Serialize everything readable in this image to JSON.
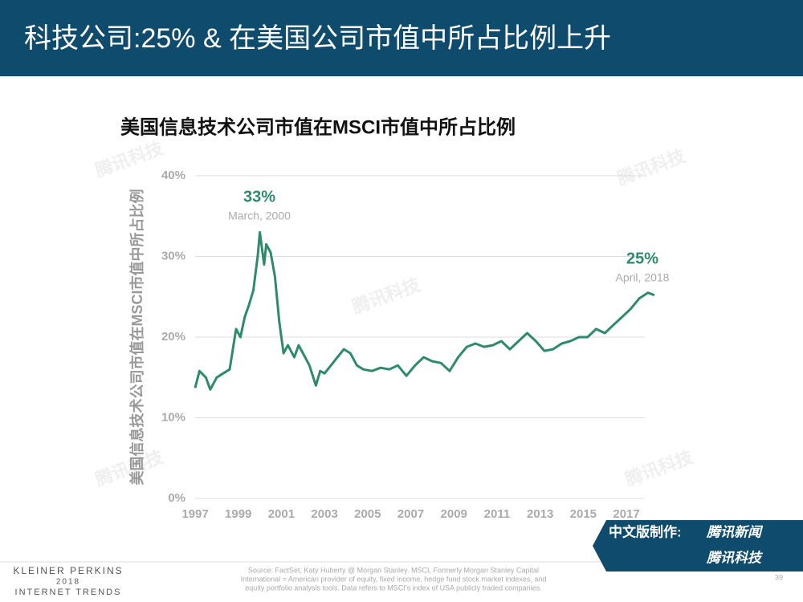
{
  "header": {
    "title": "科技公司:25% & 在美国公司市值中所占比例上升"
  },
  "chart_data": {
    "type": "line",
    "title": "美国信息技术公司市值在MSCI市值中所占比例",
    "y_label": "美国信息技术公司市值在MSCI市值中所占比例",
    "color": "#2e8b6a",
    "x": [
      1997.0,
      1997.2,
      1997.5,
      1997.7,
      1998.0,
      1998.3,
      1998.6,
      1998.9,
      1999.1,
      1999.3,
      1999.5,
      1999.7,
      1999.9,
      2000.0,
      2000.2,
      2000.3,
      2000.5,
      2000.7,
      2000.9,
      2001.1,
      2001.3,
      2001.6,
      2001.8,
      2002.0,
      2002.3,
      2002.6,
      2002.8,
      2003.0,
      2003.3,
      2003.6,
      2003.9,
      2004.2,
      2004.5,
      2004.8,
      2005.2,
      2005.6,
      2006.0,
      2006.4,
      2006.8,
      2007.2,
      2007.6,
      2008.0,
      2008.4,
      2008.8,
      2009.2,
      2009.6,
      2010.0,
      2010.4,
      2010.8,
      2011.2,
      2011.6,
      2012.0,
      2012.4,
      2012.8,
      2013.2,
      2013.6,
      2014.0,
      2014.4,
      2014.8,
      2015.2,
      2015.6,
      2016.0,
      2016.4,
      2016.8,
      2017.2,
      2017.6,
      2018.0,
      2018.3
    ],
    "values": [
      13.7,
      15.8,
      15.0,
      13.5,
      15.0,
      15.5,
      16.0,
      21.0,
      20.0,
      22.5,
      24.0,
      25.8,
      30.0,
      33.0,
      29.0,
      31.5,
      30.5,
      27.5,
      22.0,
      18.0,
      19.0,
      17.5,
      19.0,
      18.0,
      16.5,
      14.0,
      15.8,
      15.5,
      16.5,
      17.5,
      18.5,
      18.0,
      16.5,
      16.0,
      15.8,
      16.2,
      16.0,
      16.5,
      15.2,
      16.5,
      17.5,
      17.0,
      16.8,
      15.8,
      17.5,
      18.8,
      19.2,
      18.8,
      19.0,
      19.5,
      18.5,
      19.5,
      20.5,
      19.5,
      18.3,
      18.5,
      19.2,
      19.5,
      20.0,
      20.0,
      21.0,
      20.5,
      21.5,
      22.5,
      23.5,
      24.8,
      25.5,
      25.2
    ],
    "xlim": [
      1997,
      2018.6
    ],
    "xticks": [
      1997,
      1999,
      2001,
      2003,
      2005,
      2007,
      2009,
      2011,
      2013,
      2015,
      2017
    ],
    "ylim": [
      0,
      40
    ],
    "yticks": [
      {
        "value": 0,
        "label": "0%"
      },
      {
        "value": 10,
        "label": "10%"
      },
      {
        "value": 20,
        "label": "20%"
      },
      {
        "value": 30,
        "label": "30%"
      },
      {
        "value": 40,
        "label": "40%"
      }
    ],
    "grid": true,
    "annotations": [
      {
        "value": "33%",
        "note": "March, 2000"
      },
      {
        "value": "25%",
        "note": "April, 2018"
      }
    ]
  },
  "footer": {
    "source": [
      "Source: FactSet, Katy Huberty @ Morgan Stanley. MSCI, Formerly Morgan Stanley Capital",
      "International = American provider of equity, fixed income, hedge fund stock market indexes, and",
      "equity portfolio analysis tools. Data refers to MSCI's index of USA publicly traded companies."
    ],
    "brand": [
      "KLEINER PERKINS",
      "2018",
      "INTERNET TRENDS"
    ],
    "page": "39",
    "credit": "中文版制作:",
    "credit_news": "腾讯新闻",
    "credit_tech": "腾讯科技"
  },
  "watermark": "腾讯科技"
}
